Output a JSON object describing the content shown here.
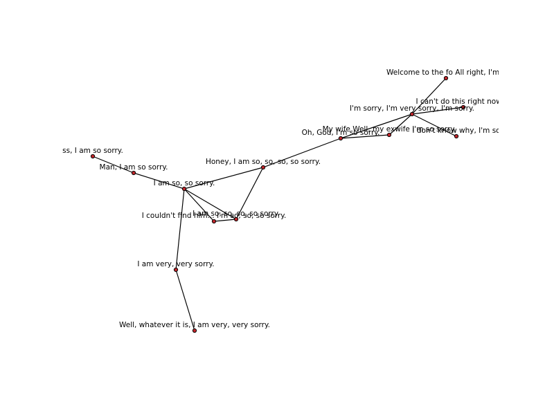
{
  "graph": {
    "node_fill": "#c0262b",
    "node_stroke": "#000000",
    "edge_color": "#000000",
    "nodes": [
      {
        "id": "n1",
        "label": "Welcome to the fo All right, I'm s"
      },
      {
        "id": "n2",
        "label": "I can't do this right now, I'"
      },
      {
        "id": "n3",
        "label": "I'm sorry, I'm very sorry, I'm sorry."
      },
      {
        "id": "n4",
        "label": "My wife Well, my exwife I'm so sorry."
      },
      {
        "id": "n5",
        "label": "I don't know why, I'm so"
      },
      {
        "id": "n6",
        "label": "Oh, God, I'm so sorry."
      },
      {
        "id": "n7",
        "label": "Honey, I am so, so, so, so sorry."
      },
      {
        "id": "n8",
        "label": "ss, I am so sorry."
      },
      {
        "id": "n9",
        "label": "Man, I am so sorry."
      },
      {
        "id": "n10",
        "label": "I am so, so sorry."
      },
      {
        "id": "n11",
        "label": "I couldn't find him... I'm so, so, so sorry."
      },
      {
        "id": "n12",
        "label": "I am so, so, so, so sorry."
      },
      {
        "id": "n13",
        "label": "I am very, very sorry."
      },
      {
        "id": "n14",
        "label": "Well, whatever it is, I am very, very sorry."
      }
    ],
    "edges": [
      [
        "n1",
        "n3"
      ],
      [
        "n2",
        "n3"
      ],
      [
        "n3",
        "n5"
      ],
      [
        "n3",
        "n4"
      ],
      [
        "n3",
        "n6"
      ],
      [
        "n4",
        "n6"
      ],
      [
        "n6",
        "n7"
      ],
      [
        "n7",
        "n10"
      ],
      [
        "n7",
        "n12"
      ],
      [
        "n8",
        "n9"
      ],
      [
        "n9",
        "n10"
      ],
      [
        "n10",
        "n11"
      ],
      [
        "n10",
        "n12"
      ],
      [
        "n11",
        "n12"
      ],
      [
        "n10",
        "n13"
      ],
      [
        "n13",
        "n14"
      ]
    ]
  }
}
